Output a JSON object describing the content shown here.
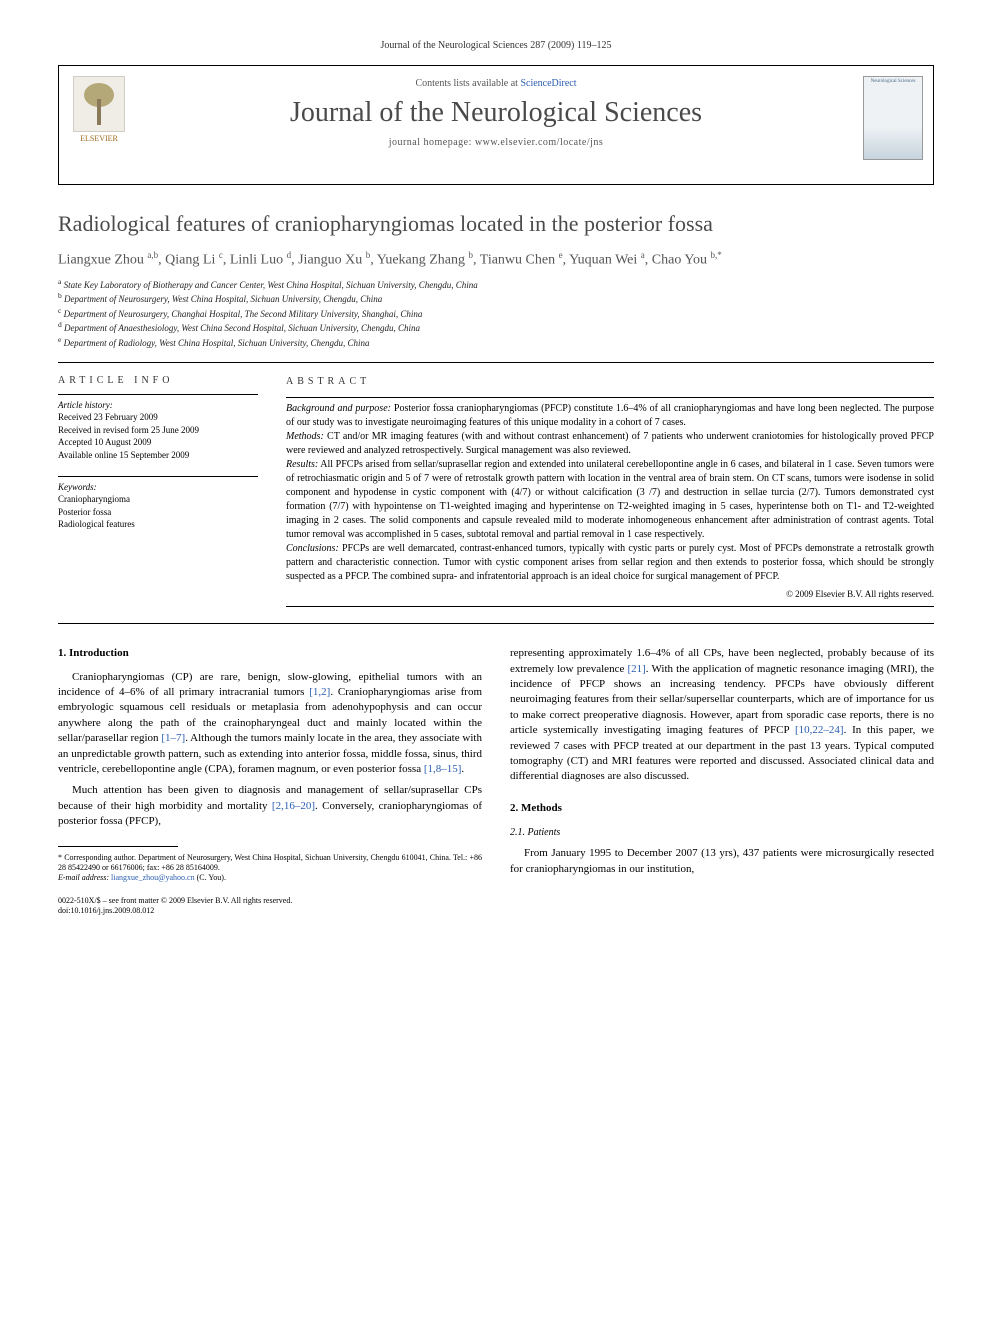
{
  "header": {
    "journal_ref": "Journal of the Neurological Sciences 287 (2009) 119–125",
    "contents_line_prefix": "Contents lists available at ",
    "contents_link": "ScienceDirect",
    "journal_title": "Journal of the Neurological Sciences",
    "homepage_prefix": "journal homepage: ",
    "homepage_url": "www.elsevier.com/locate/jns",
    "publisher_label": "ELSEVIER",
    "cover_label": "Neurological Sciences"
  },
  "article": {
    "title": "Radiological features of craniopharyngiomas located in the posterior fossa",
    "authors_html": "Liangxue Zhou <sup>a,b</sup>, Qiang Li <sup>c</sup>, Linli Luo <sup>d</sup>, Jianguo Xu <sup>b</sup>, Yuekang Zhang <sup>b</sup>, Tianwu Chen <sup>e</sup>, Yuquan Wei <sup>a</sup>, Chao You <sup>b,*</sup>",
    "affiliations": [
      "a State Key Laboratory of Biotherapy and Cancer Center, West China Hospital, Sichuan University, Chengdu, China",
      "b Department of Neurosurgery, West China Hospital, Sichuan University, Chengdu, China",
      "c Department of Neurosurgery, Changhai Hospital, The Second Military University, Shanghai, China",
      "d Department of Anaesthesiology, West China Second Hospital, Sichuan University, Chengdu, China",
      "e Department of Radiology, West China Hospital, Sichuan University, Chengdu, China"
    ]
  },
  "article_info": {
    "heading": "ARTICLE INFO",
    "history_label": "Article history:",
    "history": [
      "Received 23 February 2009",
      "Received in revised form 25 June 2009",
      "Accepted 10 August 2009",
      "Available online 15 September 2009"
    ],
    "keywords_label": "Keywords:",
    "keywords": [
      "Craniopharyngioma",
      "Posterior fossa",
      "Radiological features"
    ]
  },
  "abstract": {
    "heading": "ABSTRACT",
    "background_label": "Background and purpose:",
    "background": " Posterior fossa craniopharyngiomas (PFCP) constitute 1.6–4% of all craniopharyngiomas and have long been neglected. The purpose of our study was to investigate neuroimaging features of this unique modality in a cohort of 7 cases.",
    "methods_label": "Methods:",
    "methods": " CT and/or MR imaging features (with and without contrast enhancement) of 7 patients who underwent craniotomies for histologically proved PFCP were reviewed and analyzed retrospectively. Surgical management was also reviewed.",
    "results_label": "Results:",
    "results": " All PFCPs arised from sellar/suprasellar region and extended into unilateral cerebellopontine angle in 6 cases, and bilateral in 1 case. Seven tumors were of retrochiasmatic origin and 5 of 7 were of retrostalk growth pattern with location in the ventral area of brain stem. On CT scans, tumors were isodense in solid component and hypodense in cystic component with (4/7) or without calcification (3 /7) and destruction in sellae turcia (2/7). Tumors demonstrated cyst formation (7/7) with hypointense on T1-weighted imaging and hyperintense on T2-weighted imaging in 5 cases, hyperintense both on T1- and T2-weighted imaging in 2 cases. The solid components and capsule revealed mild to moderate inhomogeneous enhancement after administration of contrast agents. Total tumor removal was accomplished in 5 cases, subtotal removal and partial removal in 1 case respectively.",
    "conclusions_label": "Conclusions:",
    "conclusions": " PFCPs are well demarcated, contrast-enhanced tumors, typically with cystic parts or purely cyst. Most of PFCPs demonstrate a retrostalk growth pattern and characteristic connection. Tumor with cystic component arises from sellar region and then extends to posterior fossa, which should be strongly suspected as a PFCP. The combined supra- and infratentorial approach is an ideal choice for surgical management of PFCP.",
    "copyright": "© 2009 Elsevier B.V. All rights reserved."
  },
  "body": {
    "intro_heading": "1. Introduction",
    "intro_p1a": "Craniopharyngiomas (CP) are rare, benign, slow-glowing, epithelial tumors with an incidence of 4–6% of all primary intracranial tumors ",
    "intro_ref1": "[1,2]",
    "intro_p1b": ". Craniopharyngiomas arise from embryologic squamous cell residuals or metaplasia from adenohypophysis and can occur anywhere along the path of the crainopharyngeal duct and mainly located within the sellar/parasellar region ",
    "intro_ref2": "[1–7]",
    "intro_p1c": ". Although the tumors mainly locate in the area, they associate with an unpredictable growth pattern, such as extending into anterior fossa, middle fossa, sinus, third ventricle, cerebellopontine angle (CPA), foramen magnum, or even posterior fossa ",
    "intro_ref3": "[1,8–15]",
    "intro_p1d": ".",
    "intro_p2a": "Much attention has been given to diagnosis and management of sellar/suprasellar CPs because of their high morbidity and mortality ",
    "intro_ref4": "[2,16–20]",
    "intro_p2b": ". Conversely, craniopharyngiomas of posterior fossa (PFCP),",
    "col2_p1a": "representing approximately 1.6–4% of all CPs, have been neglected, probably because of its extremely low prevalence ",
    "col2_ref1": "[21]",
    "col2_p1b": ". With the application of magnetic resonance imaging (MRI), the incidence of PFCP shows an increasing tendency. PFCPs have obviously different neuroimaging features from their sellar/supersellar counterparts, which are of importance for us to make correct preoperative diagnosis. However, apart from sporadic case reports, there is no article systemically investigating imaging features of PFCP ",
    "col2_ref2": "[10,22–24]",
    "col2_p1c": ". In this paper, we reviewed 7 cases with PFCP treated at our department in the past 13 years. Typical computed tomography (CT) and MRI features were reported and discussed. Associated clinical data and differential diagnoses are also discussed.",
    "methods_heading": "2. Methods",
    "patients_heading": "2.1. Patients",
    "patients_p1": "From January 1995 to December 2007 (13 yrs), 437 patients were microsurgically resected for craniopharyngiomas in our institution,"
  },
  "footnote": {
    "corr": "* Corresponding author. Department of Neurosurgery, West China Hospital, Sichuan University, Chengdu 610041, China. Tel.: +86 28 85422490 or 66176006; fax: +86 28 85164009.",
    "email_label": "E-mail address: ",
    "email": "liangxue_zhou@yahoo.cn",
    "email_suffix": " (C. You)."
  },
  "bottom": {
    "issn": "0022-510X/$ – see front matter © 2009 Elsevier B.V. All rights reserved.",
    "doi": "doi:10.1016/j.jns.2009.08.012"
  },
  "colors": {
    "link": "#2a5db0",
    "heading_gray": "#4a4a4a"
  }
}
